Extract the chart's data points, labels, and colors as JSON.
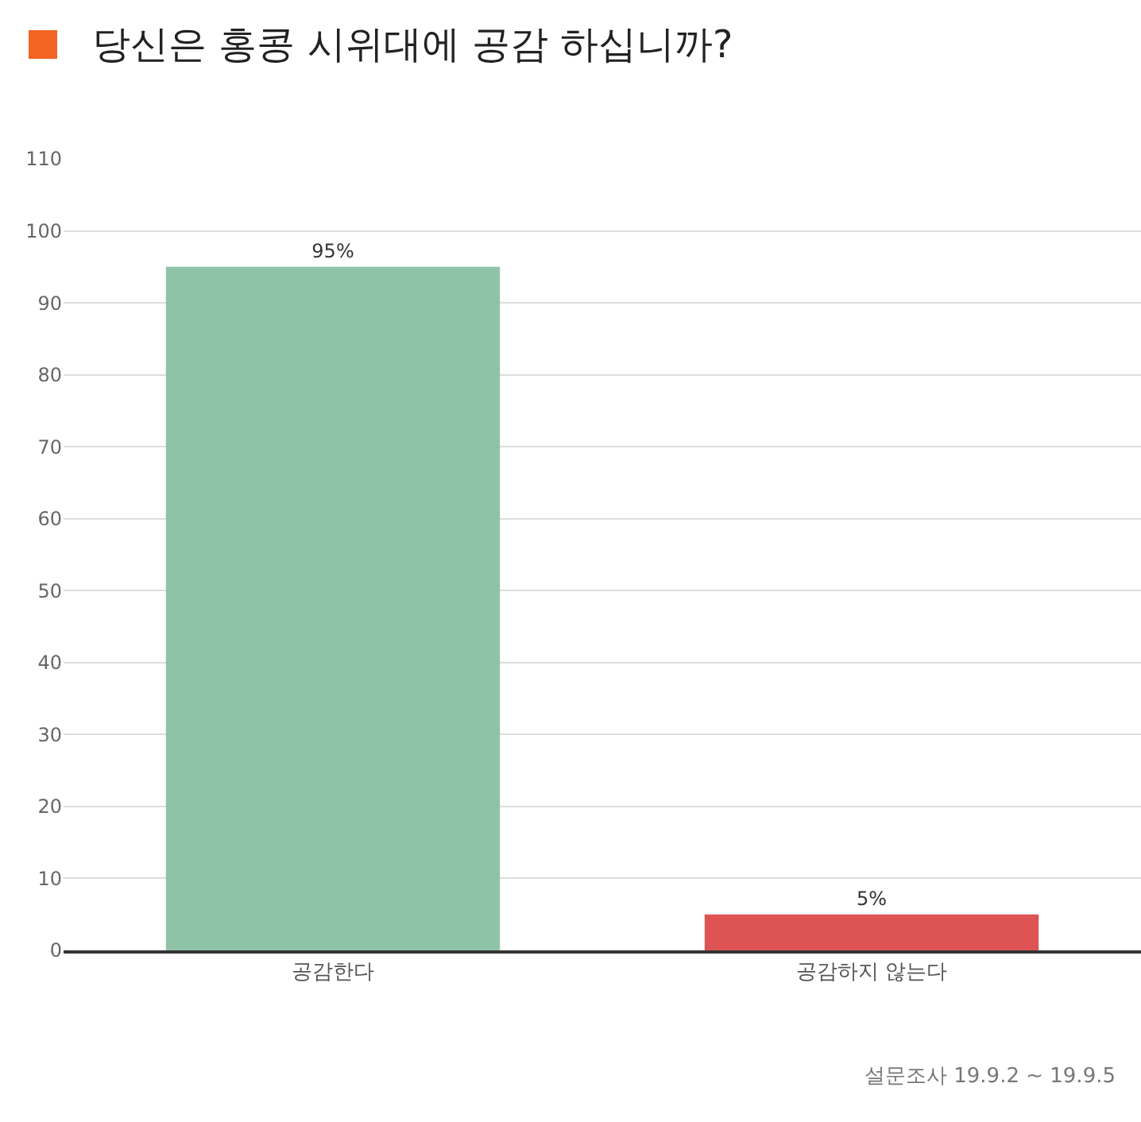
{
  "chart_data": {
    "type": "bar",
    "title": "당신은 홍콩 시위대에 공감 하십니까?",
    "categories": [
      "공감한다",
      "공감하지 않는다"
    ],
    "values": [
      95,
      5
    ],
    "colors": [
      "#8fc3a8",
      "#de5454"
    ],
    "value_labels": [
      "95%",
      "5%"
    ],
    "ylim": [
      0,
      110
    ],
    "yticks": [
      0,
      10,
      20,
      30,
      40,
      50,
      60,
      70,
      80,
      90,
      100,
      110
    ],
    "grid": "y",
    "legend": false,
    "annotations": [
      "설문조사 19.9.2 ~ 19.9.5"
    ]
  }
}
